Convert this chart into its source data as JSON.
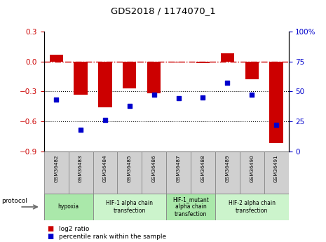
{
  "title": "GDS2018 / 1174070_1",
  "samples": [
    "GSM36482",
    "GSM36483",
    "GSM36484",
    "GSM36485",
    "GSM36486",
    "GSM36487",
    "GSM36488",
    "GSM36489",
    "GSM36490",
    "GSM36491"
  ],
  "log2_ratio": [
    0.07,
    -0.33,
    -0.46,
    -0.27,
    -0.32,
    -0.01,
    -0.02,
    0.08,
    -0.18,
    -0.82
  ],
  "percentile_rank": [
    43,
    18,
    26,
    38,
    47,
    44,
    45,
    57,
    47,
    22
  ],
  "bar_color": "#cc0000",
  "dot_color": "#0000cc",
  "ylim_left": [
    -0.9,
    0.3
  ],
  "ylim_right": [
    0,
    100
  ],
  "yticks_left": [
    0.3,
    0.0,
    -0.3,
    -0.6,
    -0.9
  ],
  "yticks_right": [
    100,
    75,
    50,
    25,
    0
  ],
  "dotted_lines": [
    -0.3,
    -0.6
  ],
  "protocols": [
    {
      "label": "hypoxia",
      "start": 0,
      "end": 2,
      "color": "#aae8aa"
    },
    {
      "label": "HIF-1 alpha chain\ntransfection",
      "start": 2,
      "end": 5,
      "color": "#ccf4cc"
    },
    {
      "label": "HIF-1_mutant\nalpha chain\ntransfection",
      "start": 5,
      "end": 7,
      "color": "#aae8aa"
    },
    {
      "label": "HIF-2 alpha chain\ntransfection",
      "start": 7,
      "end": 10,
      "color": "#ccf4cc"
    }
  ],
  "legend_bar_label": "log2 ratio",
  "legend_dot_label": "percentile rank within the sample",
  "protocol_label": "protocol",
  "bar_width": 0.55,
  "sample_box_color": "#d0d0d0",
  "sample_box_edge": "#888888"
}
